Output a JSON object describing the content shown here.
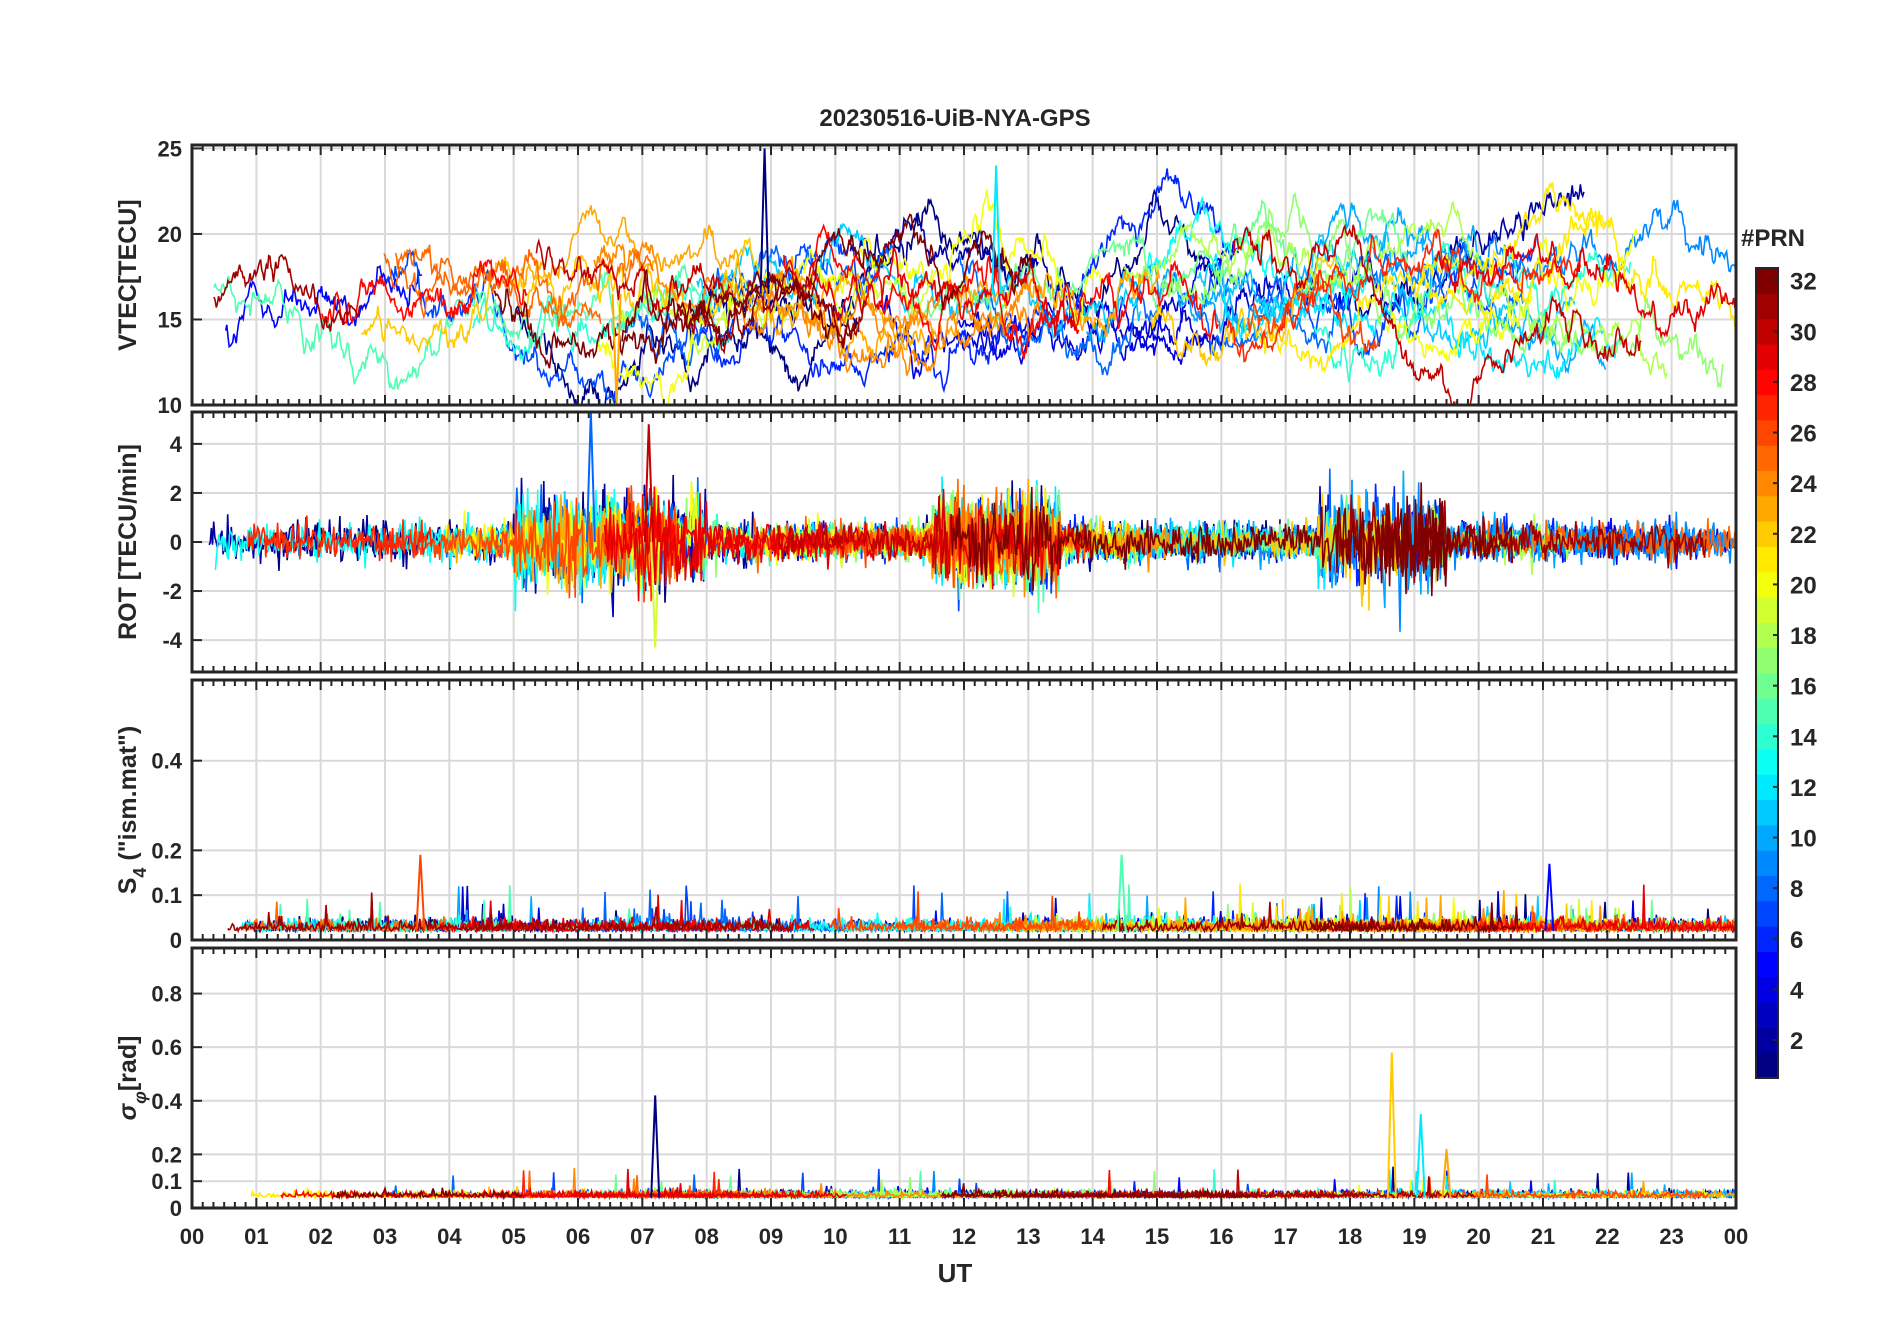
{
  "figure": {
    "title": "20230516-UiB-NYA-GPS",
    "xlabel": "UT"
  },
  "colorbar": {
    "title": "#PRN",
    "min": 1,
    "max": 32,
    "ticks": [
      "2",
      "4",
      "6",
      "8",
      "10",
      "12",
      "14",
      "16",
      "18",
      "20",
      "22",
      "24",
      "26",
      "28",
      "30",
      "32"
    ],
    "colormap": "jet"
  },
  "chart_data": [
    {
      "type": "line",
      "ylabel": "VTEC[TECU]",
      "xlim": [
        0,
        24
      ],
      "ylim": [
        10,
        25.2
      ],
      "yticks": [
        10,
        15,
        20,
        25
      ],
      "xticks": [
        "00",
        "01",
        "02",
        "03",
        "04",
        "05",
        "06",
        "07",
        "08",
        "09",
        "10",
        "11",
        "12",
        "13",
        "14",
        "15",
        "16",
        "17",
        "18",
        "19",
        "20",
        "21",
        "22",
        "23",
        "00"
      ],
      "grid": true,
      "series_count": 32,
      "series_range": "PRN 1-32",
      "baseline": 16.5,
      "note_peaks": [
        {
          "x": 8.9,
          "y": 25
        },
        {
          "x": 12.5,
          "y": 24
        },
        {
          "x": 6.6,
          "y": 10
        }
      ]
    },
    {
      "type": "line",
      "ylabel": "ROT [TECU/min]",
      "xlim": [
        0,
        24
      ],
      "ylim": [
        -5.3,
        5.3
      ],
      "yticks": [
        -4,
        -2,
        0,
        2,
        4
      ],
      "grid": true,
      "series_count": 32,
      "series_range": "PRN 1-32",
      "baseline": 0,
      "note_peaks": [
        {
          "x": 6.2,
          "y": 5.3
        },
        {
          "x": 7.2,
          "y": -4.3
        },
        {
          "x": 7.1,
          "y": 4.8
        }
      ]
    },
    {
      "type": "line",
      "ylabel": "S4 (\"ism.mat\")",
      "ylabel_main": "S",
      "ylabel_sub": "4",
      "ylabel_rest": " (\"ism.mat\")",
      "xlim": [
        0,
        24
      ],
      "ylim": [
        0,
        0.58
      ],
      "yticks": [
        0,
        0.1,
        0.2,
        0.4
      ],
      "grid": true,
      "series_count": 32,
      "series_range": "PRN 1-32",
      "baseline": 0.02,
      "note_peaks": [
        {
          "x": 14.45,
          "y": 0.19
        },
        {
          "x": 3.55,
          "y": 0.19
        },
        {
          "x": 21.1,
          "y": 0.17
        }
      ]
    },
    {
      "type": "line",
      "ylabel": "σφ[rad]",
      "ylabel_main": "σ",
      "ylabel_sub": "φ",
      "ylabel_rest": "[rad]",
      "xlim": [
        0,
        24
      ],
      "ylim": [
        0,
        0.97
      ],
      "yticks": [
        0,
        0.1,
        0.2,
        0.4,
        0.6,
        0.8
      ],
      "grid": true,
      "series_count": 32,
      "series_range": "PRN 1-32",
      "baseline": 0.04,
      "note_peaks": [
        {
          "x": 18.65,
          "y": 0.58
        },
        {
          "x": 7.2,
          "y": 0.42
        },
        {
          "x": 19.1,
          "y": 0.35
        },
        {
          "x": 19.5,
          "y": 0.22
        }
      ]
    }
  ]
}
